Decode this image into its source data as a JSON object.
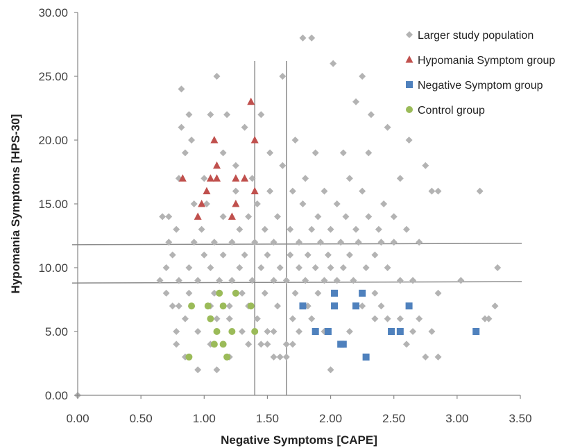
{
  "chart_data": {
    "type": "scatter",
    "xlabel": "Negative Symptoms [CAPE]",
    "ylabel": "Hypomania Symptoms  [HPS-30]",
    "xlim": [
      0,
      3.5
    ],
    "ylim": [
      0,
      30
    ],
    "xticks": [
      "0.00",
      "0.50",
      "1.00",
      "1.50",
      "2.00",
      "2.50",
      "3.00",
      "3.50"
    ],
    "yticks": [
      "0.00",
      "5.00",
      "10.00",
      "15.00",
      "20.00",
      "25.00",
      "30.00"
    ],
    "grid": false,
    "legend_position": "top-right",
    "reference_lines": {
      "vertical_x": [
        1.4,
        1.65
      ],
      "horizontal_y": [
        11.8,
        8.8
      ]
    },
    "series": [
      {
        "name": "Larger study population",
        "marker": "diamond",
        "color": "#b3b3b3",
        "points": [
          [
            0.0,
            0
          ],
          [
            0.65,
            9
          ],
          [
            0.67,
            14
          ],
          [
            0.7,
            8
          ],
          [
            0.7,
            10
          ],
          [
            0.72,
            12
          ],
          [
            0.72,
            14
          ],
          [
            0.75,
            11
          ],
          [
            0.78,
            13
          ],
          [
            0.8,
            17
          ],
          [
            0.82,
            24
          ],
          [
            0.82,
            21
          ],
          [
            0.75,
            7
          ],
          [
            0.78,
            5
          ],
          [
            0.78,
            4
          ],
          [
            0.8,
            7
          ],
          [
            0.8,
            9
          ],
          [
            0.85,
            3
          ],
          [
            0.85,
            6
          ],
          [
            0.88,
            8
          ],
          [
            0.88,
            10
          ],
          [
            0.92,
            12
          ],
          [
            0.92,
            15
          ],
          [
            0.85,
            19
          ],
          [
            0.88,
            22
          ],
          [
            0.9,
            20
          ],
          [
            0.95,
            2
          ],
          [
            0.95,
            5
          ],
          [
            0.95,
            9
          ],
          [
            0.98,
            13
          ],
          [
            1.0,
            11
          ],
          [
            1.0,
            17
          ],
          [
            1.02,
            15
          ],
          [
            1.05,
            4
          ],
          [
            1.05,
            7
          ],
          [
            1.05,
            10
          ],
          [
            1.05,
            22
          ],
          [
            1.08,
            8
          ],
          [
            1.08,
            12
          ],
          [
            1.1,
            25
          ],
          [
            1.1,
            2
          ],
          [
            1.1,
            6
          ],
          [
            1.12,
            9
          ],
          [
            1.15,
            11
          ],
          [
            1.15,
            14
          ],
          [
            1.15,
            19
          ],
          [
            1.18,
            22
          ],
          [
            1.2,
            3
          ],
          [
            1.2,
            6
          ],
          [
            1.2,
            7
          ],
          [
            1.22,
            9
          ],
          [
            1.22,
            12
          ],
          [
            1.25,
            16
          ],
          [
            1.25,
            18
          ],
          [
            1.28,
            10
          ],
          [
            1.28,
            13
          ],
          [
            1.3,
            5
          ],
          [
            1.3,
            8
          ],
          [
            1.32,
            11
          ],
          [
            1.32,
            21
          ],
          [
            1.35,
            4
          ],
          [
            1.35,
            7
          ],
          [
            1.35,
            14
          ],
          [
            1.38,
            9
          ],
          [
            1.38,
            17
          ],
          [
            1.4,
            12
          ],
          [
            1.42,
            6
          ],
          [
            1.42,
            15
          ],
          [
            1.45,
            10
          ],
          [
            1.45,
            22
          ],
          [
            1.48,
            8
          ],
          [
            1.48,
            13
          ],
          [
            1.5,
            5
          ],
          [
            1.5,
            11
          ],
          [
            1.52,
            16
          ],
          [
            1.52,
            19
          ],
          [
            1.55,
            9
          ],
          [
            1.55,
            12
          ],
          [
            1.58,
            7
          ],
          [
            1.58,
            14
          ],
          [
            1.6,
            10
          ],
          [
            1.62,
            25
          ],
          [
            1.62,
            18
          ],
          [
            1.65,
            4
          ],
          [
            1.65,
            9
          ],
          [
            1.68,
            11
          ],
          [
            1.68,
            13
          ],
          [
            1.7,
            6
          ],
          [
            1.7,
            16
          ],
          [
            1.72,
            8
          ],
          [
            1.72,
            20
          ],
          [
            1.75,
            10
          ],
          [
            1.75,
            12
          ],
          [
            1.78,
            28
          ],
          [
            1.78,
            15
          ],
          [
            1.8,
            9
          ],
          [
            1.8,
            17
          ],
          [
            1.82,
            7
          ],
          [
            1.82,
            11
          ],
          [
            1.85,
            13
          ],
          [
            1.85,
            28
          ],
          [
            1.88,
            10
          ],
          [
            1.88,
            19
          ],
          [
            1.9,
            8
          ],
          [
            1.9,
            14
          ],
          [
            1.92,
            12
          ],
          [
            1.95,
            9
          ],
          [
            1.95,
            16
          ],
          [
            1.98,
            11
          ],
          [
            2.0,
            2
          ],
          [
            2.0,
            10
          ],
          [
            2.0,
            13
          ],
          [
            2.02,
            26
          ],
          [
            2.05,
            9
          ],
          [
            2.05,
            15
          ],
          [
            2.08,
            12
          ],
          [
            2.1,
            10
          ],
          [
            2.1,
            19
          ],
          [
            2.12,
            14
          ],
          [
            2.15,
            11
          ],
          [
            2.15,
            17
          ],
          [
            2.18,
            9
          ],
          [
            2.2,
            13
          ],
          [
            2.2,
            23
          ],
          [
            2.22,
            12
          ],
          [
            2.25,
            16
          ],
          [
            2.25,
            25
          ],
          [
            2.28,
            10
          ],
          [
            2.3,
            14
          ],
          [
            2.3,
            19
          ],
          [
            2.32,
            22
          ],
          [
            2.35,
            11
          ],
          [
            2.38,
            13
          ],
          [
            2.4,
            12
          ],
          [
            2.42,
            15
          ],
          [
            2.45,
            10
          ],
          [
            2.45,
            21
          ],
          [
            2.5,
            12
          ],
          [
            2.5,
            14
          ],
          [
            2.55,
            9
          ],
          [
            2.55,
            17
          ],
          [
            2.6,
            13
          ],
          [
            2.62,
            20
          ],
          [
            2.65,
            9
          ],
          [
            2.7,
            12
          ],
          [
            2.75,
            18
          ],
          [
            2.8,
            16
          ],
          [
            2.85,
            16
          ],
          [
            2.85,
            3
          ],
          [
            2.75,
            3
          ],
          [
            2.8,
            5
          ],
          [
            2.85,
            8
          ],
          [
            3.03,
            9
          ],
          [
            3.18,
            16
          ],
          [
            3.22,
            6
          ],
          [
            3.25,
            6
          ],
          [
            3.3,
            7
          ],
          [
            3.32,
            10
          ],
          [
            2.6,
            4
          ],
          [
            2.65,
            5
          ],
          [
            2.7,
            6
          ],
          [
            2.55,
            6
          ],
          [
            2.45,
            6
          ],
          [
            2.35,
            6
          ],
          [
            1.55,
            3
          ],
          [
            1.6,
            3
          ],
          [
            1.65,
            3
          ],
          [
            1.7,
            4
          ],
          [
            1.75,
            5
          ],
          [
            1.85,
            6
          ],
          [
            1.95,
            5
          ],
          [
            2.15,
            5
          ],
          [
            2.25,
            7
          ],
          [
            2.35,
            8
          ],
          [
            2.4,
            7
          ],
          [
            1.45,
            4
          ],
          [
            1.5,
            4
          ],
          [
            1.55,
            5
          ]
        ]
      },
      {
        "name": "Hypomania Symptom group",
        "marker": "triangle",
        "color": "#c0504d",
        "points": [
          [
            0.83,
            17
          ],
          [
            0.95,
            14
          ],
          [
            0.98,
            15
          ],
          [
            1.02,
            16
          ],
          [
            1.05,
            17
          ],
          [
            1.08,
            20
          ],
          [
            1.1,
            18
          ],
          [
            1.1,
            17
          ],
          [
            1.22,
            14
          ],
          [
            1.25,
            15
          ],
          [
            1.25,
            17
          ],
          [
            1.32,
            17
          ],
          [
            1.37,
            23
          ],
          [
            1.4,
            20
          ],
          [
            1.4,
            16
          ]
        ]
      },
      {
        "name": "Negative Symptom group",
        "marker": "square",
        "color": "#4f81bd",
        "points": [
          [
            1.78,
            7
          ],
          [
            1.88,
            5
          ],
          [
            1.98,
            5
          ],
          [
            2.03,
            7
          ],
          [
            2.03,
            8
          ],
          [
            2.08,
            4
          ],
          [
            2.1,
            4
          ],
          [
            2.2,
            7
          ],
          [
            2.25,
            8
          ],
          [
            2.28,
            3
          ],
          [
            2.48,
            5
          ],
          [
            2.55,
            5
          ],
          [
            2.62,
            7
          ],
          [
            3.15,
            5
          ]
        ]
      },
      {
        "name": "Control group",
        "marker": "circle",
        "color": "#9bbb59",
        "points": [
          [
            0.88,
            3
          ],
          [
            0.9,
            7
          ],
          [
            1.03,
            7
          ],
          [
            1.05,
            6
          ],
          [
            1.08,
            4
          ],
          [
            1.1,
            5
          ],
          [
            1.12,
            8
          ],
          [
            1.15,
            4
          ],
          [
            1.15,
            7
          ],
          [
            1.18,
            3
          ],
          [
            1.22,
            5
          ],
          [
            1.25,
            8
          ],
          [
            1.37,
            7
          ],
          [
            1.4,
            5
          ]
        ]
      }
    ]
  }
}
